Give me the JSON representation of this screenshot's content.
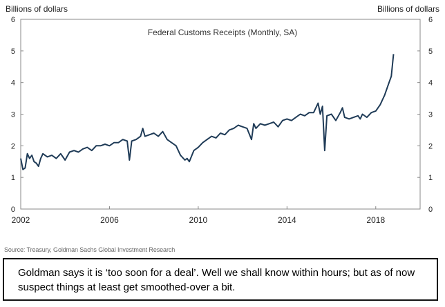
{
  "chart_data": {
    "type": "line",
    "title": "Federal Customs Receipts (Monthly, SA)",
    "ylabel_left": "Billions of dollars",
    "ylabel_right": "Billions of dollars",
    "ylim": [
      0,
      6
    ],
    "yticks": [
      0,
      1,
      2,
      3,
      4,
      5,
      6
    ],
    "xlim": [
      2002,
      2020
    ],
    "xticks": [
      2002,
      2006,
      2010,
      2014,
      2018
    ],
    "grid": false,
    "series": [
      {
        "color": "#1f3b57",
        "x": [
          2002.0,
          2002.1,
          2002.2,
          2002.3,
          2002.4,
          2002.5,
          2002.6,
          2002.7,
          2002.8,
          2002.9,
          2003.0,
          2003.2,
          2003.4,
          2003.6,
          2003.8,
          2004.0,
          2004.2,
          2004.4,
          2004.6,
          2004.8,
          2005.0,
          2005.2,
          2005.4,
          2005.6,
          2005.8,
          2006.0,
          2006.2,
          2006.4,
          2006.6,
          2006.8,
          2006.9,
          2007.0,
          2007.2,
          2007.4,
          2007.5,
          2007.6,
          2007.8,
          2008.0,
          2008.2,
          2008.4,
          2008.6,
          2008.8,
          2009.0,
          2009.2,
          2009.4,
          2009.5,
          2009.6,
          2009.8,
          2010.0,
          2010.2,
          2010.4,
          2010.6,
          2010.8,
          2011.0,
          2011.2,
          2011.4,
          2011.6,
          2011.8,
          2012.0,
          2012.2,
          2012.4,
          2012.5,
          2012.6,
          2012.8,
          2013.0,
          2013.2,
          2013.4,
          2013.6,
          2013.8,
          2014.0,
          2014.2,
          2014.4,
          2014.6,
          2014.8,
          2015.0,
          2015.2,
          2015.4,
          2015.5,
          2015.6,
          2015.7,
          2015.8,
          2016.0,
          2016.2,
          2016.4,
          2016.5,
          2016.6,
          2016.8,
          2017.0,
          2017.2,
          2017.3,
          2017.4,
          2017.6,
          2017.8,
          2018.0,
          2018.2,
          2018.4,
          2018.6,
          2018.7,
          2018.8
        ],
        "values": [
          1.6,
          1.25,
          1.3,
          1.75,
          1.6,
          1.7,
          1.5,
          1.45,
          1.35,
          1.6,
          1.75,
          1.65,
          1.7,
          1.6,
          1.75,
          1.55,
          1.8,
          1.85,
          1.8,
          1.9,
          1.95,
          1.85,
          2.0,
          2.0,
          2.05,
          2.0,
          2.1,
          2.1,
          2.2,
          2.15,
          1.55,
          2.15,
          2.2,
          2.3,
          2.55,
          2.3,
          2.35,
          2.4,
          2.3,
          2.45,
          2.2,
          2.1,
          2.0,
          1.7,
          1.55,
          1.6,
          1.5,
          1.85,
          1.95,
          2.1,
          2.2,
          2.3,
          2.25,
          2.4,
          2.35,
          2.5,
          2.55,
          2.65,
          2.6,
          2.55,
          2.2,
          2.7,
          2.55,
          2.7,
          2.65,
          2.7,
          2.75,
          2.6,
          2.8,
          2.85,
          2.8,
          2.9,
          3.0,
          2.95,
          3.05,
          3.05,
          3.35,
          3.0,
          3.25,
          1.85,
          2.95,
          3.0,
          2.8,
          3.05,
          3.2,
          2.9,
          2.85,
          2.9,
          2.95,
          2.85,
          3.0,
          2.9,
          3.05,
          3.1,
          3.3,
          3.6,
          4.0,
          4.2,
          4.9
        ]
      }
    ]
  },
  "source_note": "Source: Treasury, Goldman Sachs Global Investment Research",
  "caption": "Goldman says it is ‘too soon for a deal’. Well we shall know within hours; but as of now suspect things at least get smoothed-over a bit."
}
